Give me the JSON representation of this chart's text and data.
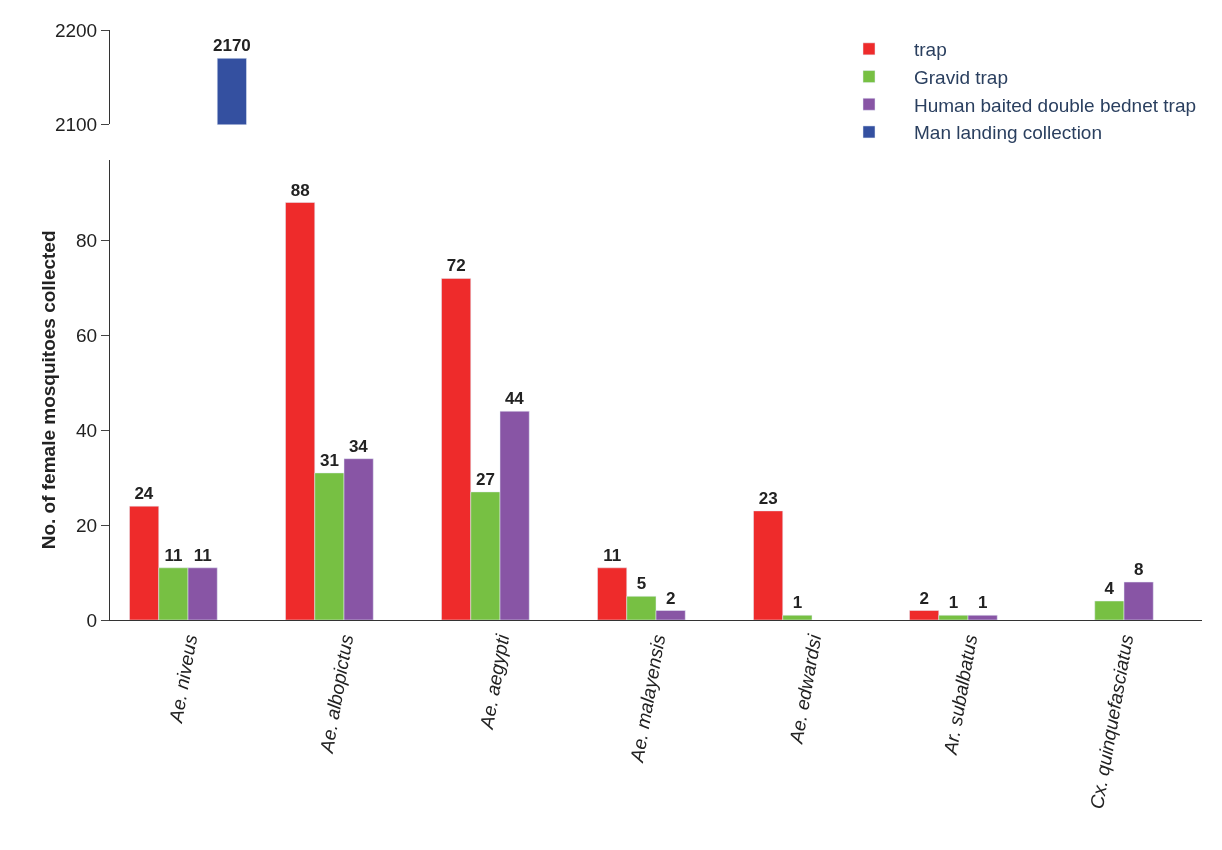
{
  "chart_data": [
    {
      "type": "bar",
      "categories": [
        "Ae. niveus",
        "Ae. albopictus",
        "Ae. aegypti",
        "Ae. malayensis",
        "Ae. edwardsi",
        "Ar. subalbatus",
        "Cx. quinquefasciatus"
      ],
      "series": [
        {
          "color": "#ee2b2b",
          "values": [
            null,
            null,
            null,
            null,
            null,
            null,
            null
          ]
        },
        {
          "color": "#77c043",
          "values": [
            null,
            null,
            null,
            null,
            null,
            null,
            null
          ]
        },
        {
          "color": "#8855a5",
          "values": [
            null,
            null,
            null,
            null,
            null,
            null,
            null
          ]
        },
        {
          "color": "#3450a0",
          "values": [
            2170,
            null,
            null,
            null,
            null,
            null,
            null
          ]
        }
      ],
      "ylim": [
        2100,
        2200
      ],
      "yticks": [
        2100,
        2200
      ],
      "tick_labels": "y",
      "data_labels": true
    },
    {
      "type": "bar",
      "categories": [
        "Ae. niveus",
        "Ae. albopictus",
        "Ae. aegypti",
        "Ae. malayensis",
        "Ae. edwardsi",
        "Ar. subalbatus",
        "Cx. quinquefasciatus"
      ],
      "ylabel": "No. of female mosquitoes collected",
      "series": [
        {
          "name": "trap",
          "color": "#ee2b2b",
          "values": [
            24,
            88,
            72,
            11,
            23,
            2,
            null
          ]
        },
        {
          "name": "Gravid trap",
          "color": "#77c043",
          "values": [
            11,
            31,
            27,
            5,
            1,
            1,
            4
          ]
        },
        {
          "name": "Human baited double bednet trap",
          "color": "#8855a5",
          "values": [
            11,
            34,
            44,
            2,
            null,
            1,
            8
          ]
        },
        {
          "name": "Man landing collection",
          "color": "#3450a0",
          "values": [
            null,
            null,
            null,
            null,
            null,
            null,
            null
          ]
        }
      ],
      "ylim": [
        0,
        97
      ],
      "yticks": [
        0,
        20,
        40,
        60,
        80
      ],
      "data_labels": true,
      "legend": "top right"
    }
  ]
}
